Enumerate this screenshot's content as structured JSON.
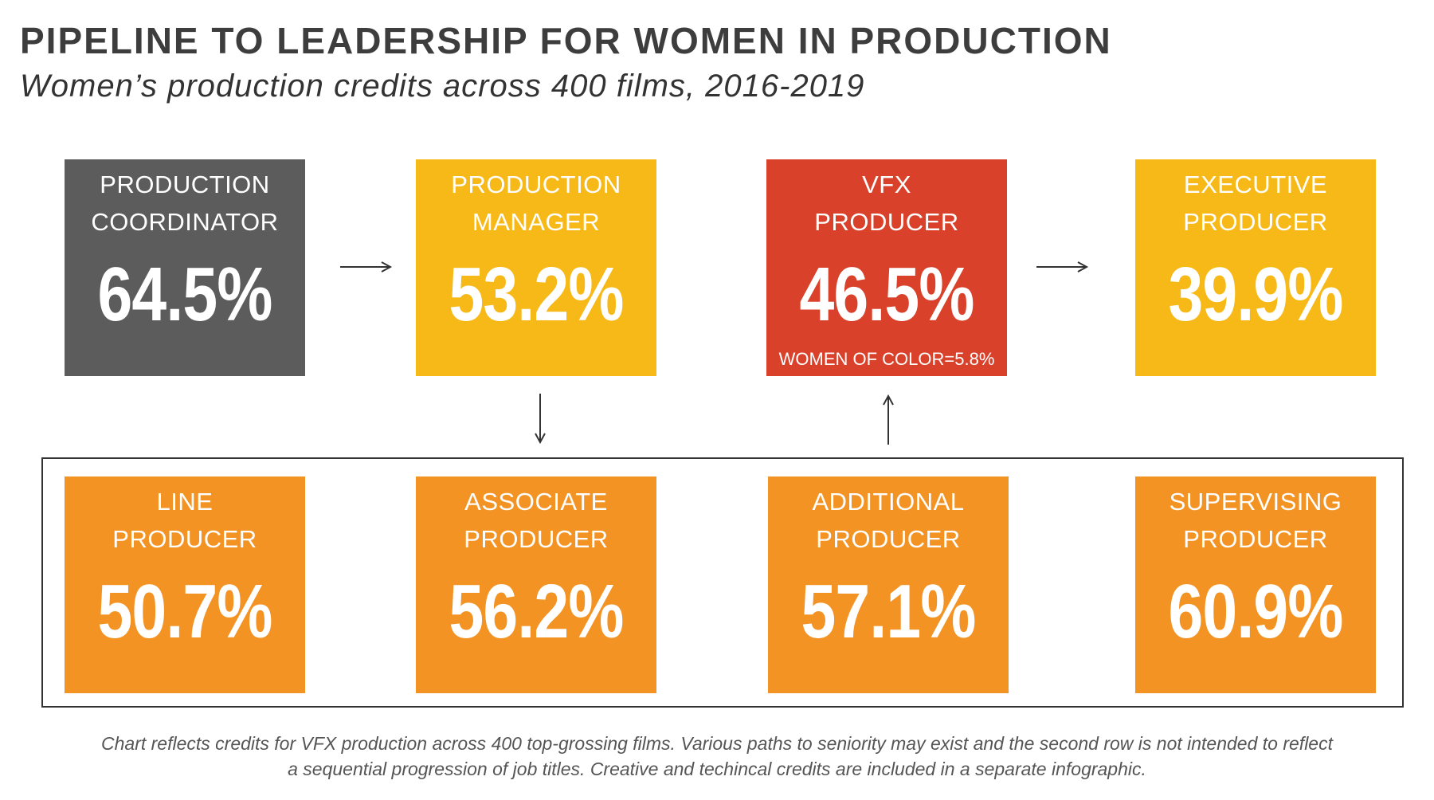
{
  "title": "PIPELINE TO LEADERSHIP FOR WOMEN IN PRODUCTION",
  "subtitle": "Women’s production credits across 400 films, 2016-2019",
  "colors": {
    "gray": "#5c5c5c",
    "yellow": "#f7b918",
    "red": "#d9412b",
    "orange": "#f39323"
  },
  "top_row": [
    {
      "line1": "PRODUCTION",
      "line2": "COORDINATOR",
      "value": "64.5%"
    },
    {
      "line1": "PRODUCTION",
      "line2": "MANAGER",
      "value": "53.2%"
    },
    {
      "line1": "VFX",
      "line2": "PRODUCER",
      "value": "46.5%",
      "note": "WOMEN OF COLOR=5.8%"
    },
    {
      "line1": "EXECUTIVE",
      "line2": "PRODUCER",
      "value": "39.9%"
    }
  ],
  "bottom_row": [
    {
      "line1": "LINE",
      "line2": "PRODUCER",
      "value": "50.7%"
    },
    {
      "line1": "ASSOCIATE",
      "line2": "PRODUCER",
      "value": "56.2%"
    },
    {
      "line1": "ADDITIONAL",
      "line2": "PRODUCER",
      "value": "57.1%"
    },
    {
      "line1": "SUPERVISING",
      "line2": "PRODUCER",
      "value": "60.9%"
    }
  ],
  "footnote": {
    "line1": "Chart reflects credits for VFX production across 400 top-grossing films. Various paths to seniority may exist and the second row is not intended to reflect",
    "line2": "a sequential progression of job titles. Creative and techincal credits are included in a separate infographic."
  }
}
